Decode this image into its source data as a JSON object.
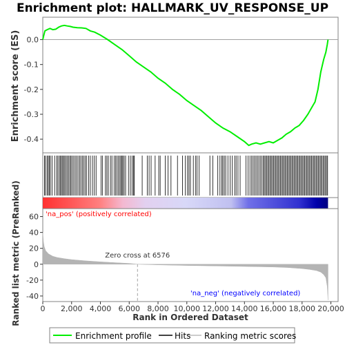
{
  "chart_data": {
    "type": "line",
    "title": "Enrichment plot: HALLMARK_UV_RESPONSE_UP",
    "xlabel": "Rank in Ordered Dataset",
    "ylabel_top": "Enrichment score (ES)",
    "ylabel_bottom": "Ranked list metric (PreRanked)",
    "x_ticks": [
      0,
      2000,
      4000,
      6000,
      8000,
      10000,
      12000,
      14000,
      16000,
      18000,
      20000
    ],
    "x_tick_labels": [
      "0",
      "2,000",
      "4,000",
      "6,000",
      "8,000",
      "10,000",
      "12,000",
      "14,000",
      "16,000",
      "18,000",
      "20,000"
    ],
    "xlim": [
      0,
      20500
    ],
    "es_ylim": [
      -0.455,
      0.09
    ],
    "es_ticks": [
      0.0,
      -0.1,
      -0.2,
      -0.3,
      -0.4
    ],
    "es_tick_labels": [
      "0.0",
      "-0.1",
      "-0.2",
      "-0.3",
      "-0.4"
    ],
    "metric_ylim": [
      -47,
      70
    ],
    "metric_ticks": [
      60,
      40,
      20,
      0,
      -20,
      -40
    ],
    "metric_tick_labels": [
      "60",
      "40",
      "20",
      "0",
      "-20",
      "-40"
    ],
    "n_genes": 19800,
    "enrichment_profile": {
      "x": [
        0,
        80,
        150,
        300,
        500,
        700,
        900,
        1100,
        1300,
        1500,
        1700,
        1900,
        2100,
        2400,
        2700,
        3000,
        3300,
        3600,
        4000,
        4500,
        5000,
        5500,
        6000,
        6500,
        7000,
        7500,
        8000,
        8500,
        9000,
        9500,
        10000,
        10500,
        11000,
        11500,
        12000,
        12500,
        13000,
        13500,
        14000,
        14300,
        14500,
        14800,
        15100,
        15400,
        15700,
        16000,
        16300,
        16600,
        16900,
        17200,
        17500,
        17800,
        18100,
        18400,
        18700,
        18900,
        19100,
        19300,
        19500,
        19650,
        19750,
        19800
      ],
      "y": [
        0.0,
        0.02,
        0.035,
        0.04,
        0.045,
        0.04,
        0.042,
        0.05,
        0.055,
        0.057,
        0.055,
        0.053,
        0.05,
        0.048,
        0.047,
        0.045,
        0.035,
        0.03,
        0.018,
        0.0,
        -0.02,
        -0.04,
        -0.065,
        -0.09,
        -0.11,
        -0.13,
        -0.155,
        -0.175,
        -0.2,
        -0.22,
        -0.245,
        -0.265,
        -0.285,
        -0.31,
        -0.335,
        -0.355,
        -0.37,
        -0.39,
        -0.41,
        -0.425,
        -0.42,
        -0.415,
        -0.42,
        -0.415,
        -0.41,
        -0.415,
        -0.405,
        -0.395,
        -0.38,
        -0.37,
        -0.355,
        -0.345,
        -0.325,
        -0.3,
        -0.27,
        -0.25,
        -0.2,
        -0.13,
        -0.08,
        -0.05,
        -0.02,
        0.0
      ]
    },
    "hits": [
      120,
      190,
      300,
      380,
      460,
      530,
      650,
      820,
      960,
      1050,
      1150,
      1230,
      1300,
      1380,
      1450,
      1530,
      1620,
      1700,
      1800,
      1880,
      1960,
      2050,
      2150,
      2250,
      2350,
      2450,
      2560,
      2650,
      2750,
      2850,
      2950,
      3050,
      3180,
      3300,
      3450,
      3580,
      3700,
      4050,
      4150,
      4350,
      4450,
      4550,
      4700,
      4800,
      4950,
      5050,
      5150,
      5250,
      5350,
      5420,
      5500,
      5560,
      5650,
      5750,
      5950,
      6080,
      6200,
      6300,
      6350,
      6900,
      7250,
      7380,
      7520,
      7800,
      8050,
      8150,
      8500,
      8700,
      8900,
      9350,
      9700,
      9900,
      10050,
      10150,
      10250,
      10450,
      10600,
      10700,
      10850,
      11600,
      11800,
      12150,
      12300,
      12420,
      12500,
      12600,
      12700,
      12850,
      13000,
      13150,
      13320,
      13420,
      13550,
      13700,
      14100,
      14250,
      14380,
      14500,
      14600,
      14700,
      14800,
      14900,
      15000,
      15100,
      15200,
      15300,
      15380,
      15460,
      15540,
      15620,
      15700,
      15780,
      15860,
      15940,
      16020,
      16100,
      16180,
      16260,
      16340,
      16420,
      16500,
      16580,
      16660,
      16740,
      16820,
      16900,
      16980,
      17060,
      17140,
      17220,
      17300,
      17380,
      17460,
      17540,
      17620,
      17700,
      17780,
      17860,
      17940,
      18020,
      18100,
      18180,
      18260,
      18340,
      18420,
      18500,
      18580,
      18660,
      18740,
      18820,
      18900,
      18980,
      19060,
      19140,
      19220,
      19300,
      19380,
      19460,
      19540,
      19620,
      19700,
      19770
    ],
    "ranked_metric": {
      "x": [
        0,
        50,
        100,
        200,
        400,
        700,
        1000,
        1500,
        2000,
        3000,
        4000,
        5000,
        6000,
        6576,
        8000,
        10000,
        12000,
        14000,
        16000,
        17000,
        18000,
        18500,
        19000,
        19300,
        19500,
        19650,
        19750,
        19800
      ],
      "y": [
        40,
        28,
        22,
        17,
        13,
        10,
        8.5,
        7,
        5.8,
        4.2,
        3,
        2,
        1,
        0,
        -0.8,
        -1.6,
        -2.2,
        -2.8,
        -3.5,
        -4.2,
        -5.5,
        -6.5,
        -8,
        -10,
        -13,
        -17,
        -28,
        -45
      ]
    },
    "annotations": {
      "pos_label": "'na_pos' (positively correlated)",
      "neg_label": "'na_neg' (negatively correlated)",
      "zero_cross": "Zero cross at 6576",
      "zero_cross_value": 6576
    },
    "legend": {
      "placement": "bottom",
      "items": [
        {
          "label": "Enrichment profile",
          "color": "#00ee00"
        },
        {
          "label": "Hits",
          "color": "#000000"
        },
        {
          "label": "Ranking metric scores",
          "color": "#bbbbbb"
        }
      ]
    },
    "colors": {
      "profile": "#00ee00",
      "hits": "#000000",
      "metric_fill": "#b4b4b4",
      "pos_text": "#ff0000",
      "neg_text": "#0000ff",
      "bar_red": "#ff0000",
      "bar_blue": "#0000cc"
    }
  }
}
